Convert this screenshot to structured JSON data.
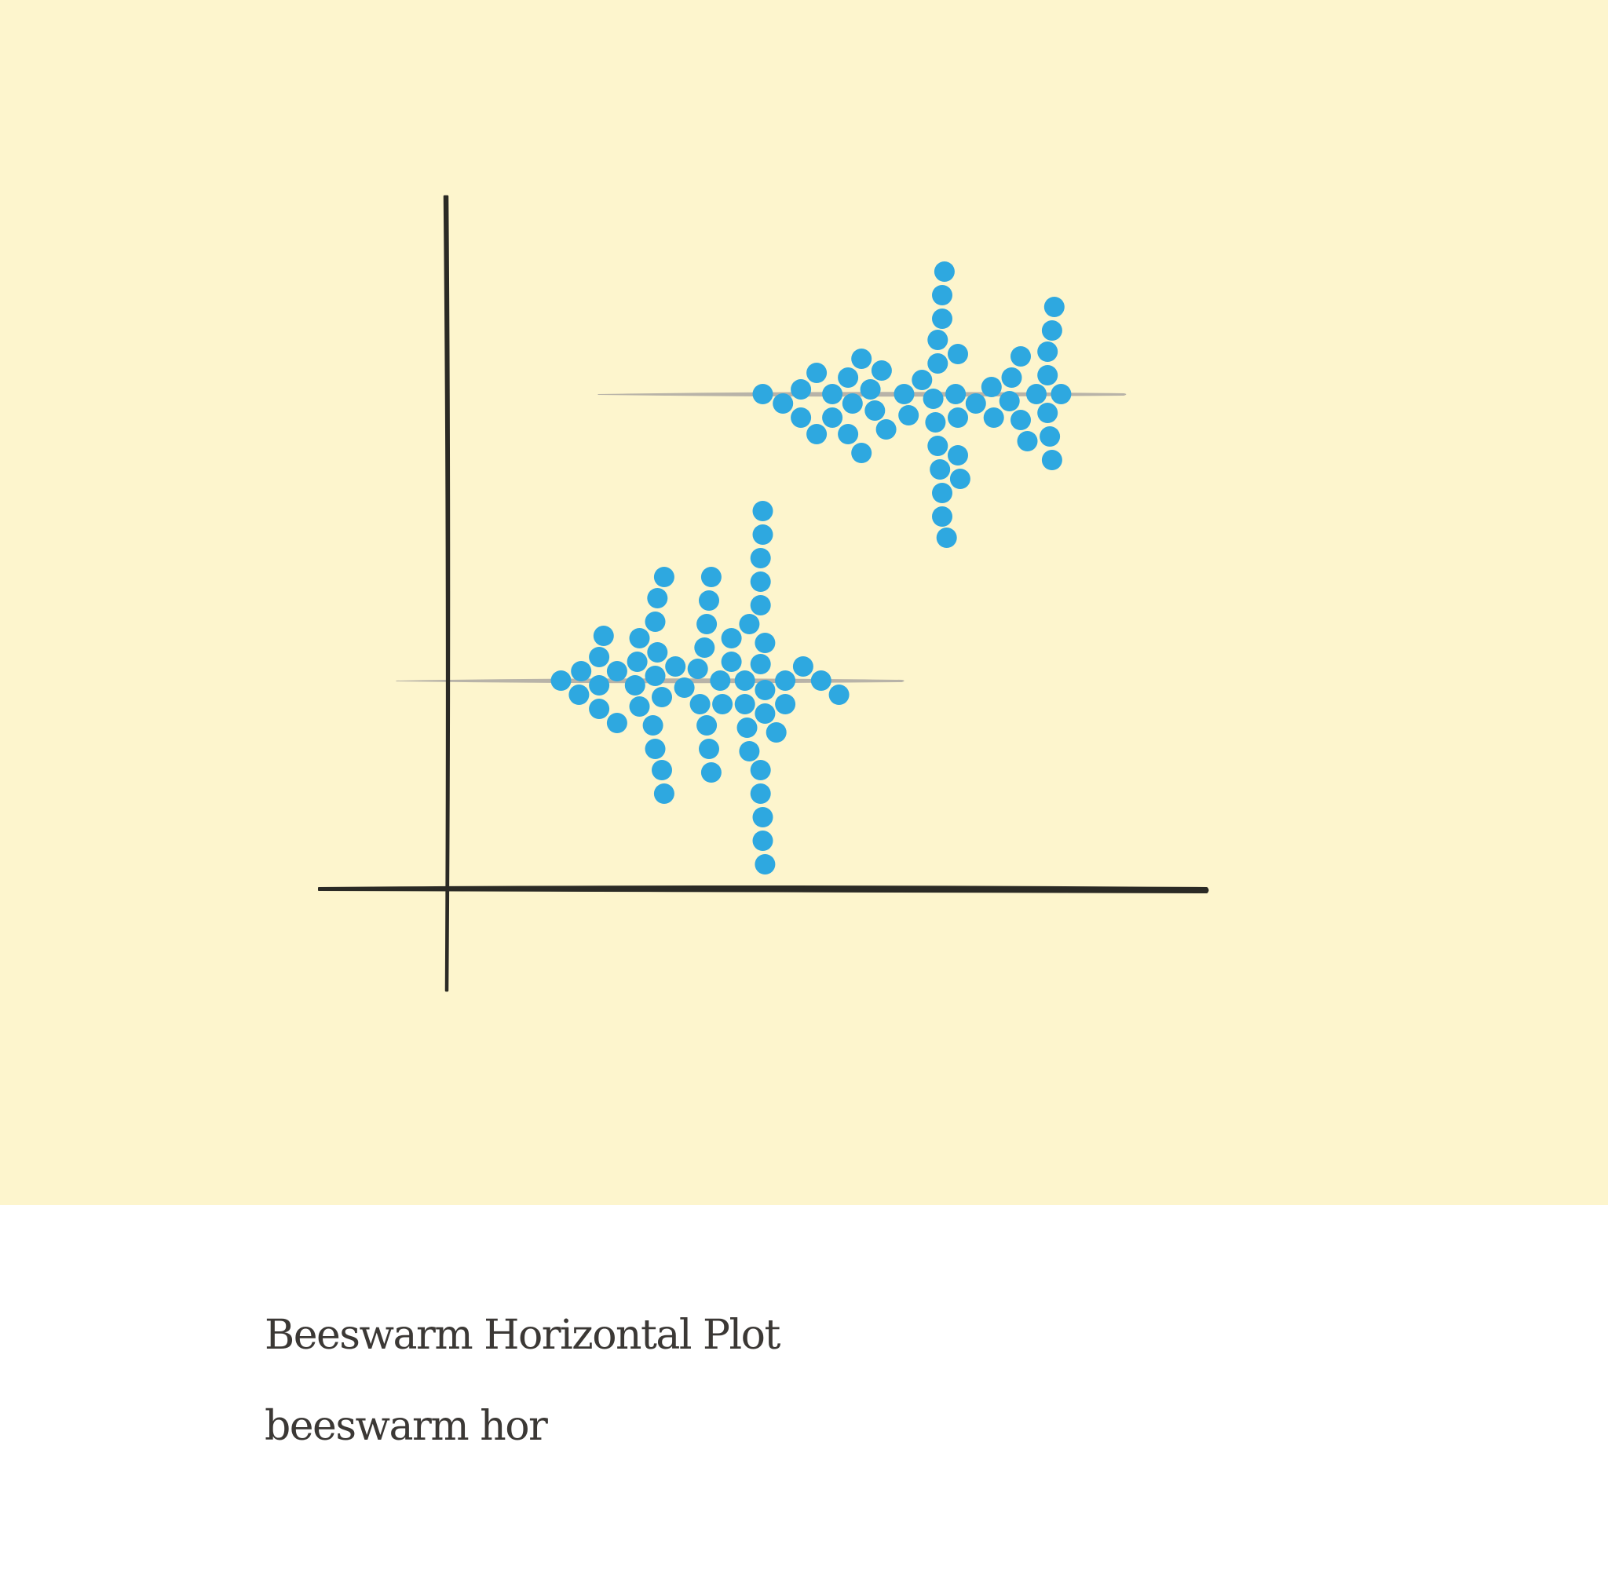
{
  "card": {
    "title": "Beeswarm Horizontal Plot",
    "subtitle": "beeswarm hor"
  },
  "colors": {
    "background": "#fdf5cd",
    "dot": "#2ea8e0",
    "axis": "#2b2a25",
    "baseline": "#b8b3a8",
    "text": "#3b3835"
  },
  "chart_data": {
    "type": "scatter",
    "style": "beeswarm",
    "orientation": "horizontal",
    "title": "",
    "xlabel": "",
    "ylabel": "",
    "xlim": [
      -4,
      30
    ],
    "ylim": [
      0,
      10
    ],
    "grid": false,
    "legend": "none",
    "series": [
      {
        "values": [
          10.2,
          11.1,
          11.9,
          11.9,
          12.6,
          12.6,
          13.3,
          13.3,
          14.0,
          14.0,
          14.2,
          14.6,
          14.6,
          15.0,
          15.2,
          15.5,
          15.7,
          16.5,
          16.7,
          17.3,
          17.8,
          17.9,
          18.0,
          18.0,
          18.0,
          18.1,
          18.2,
          18.2,
          18.2,
          18.2,
          18.3,
          18.4,
          18.8,
          18.9,
          18.9,
          18.9,
          19.0,
          19.7,
          20.4,
          20.5,
          21.2,
          21.3,
          21.7,
          21.7,
          22.0,
          22.4,
          22.9,
          22.9,
          22.9,
          23.0,
          23.1,
          23.1,
          23.2,
          23.5
        ]
      },
      {
        "values": [
          1.2,
          2.0,
          2.1,
          2.9,
          2.9,
          2.9,
          3.1,
          3.7,
          3.7,
          4.5,
          4.6,
          4.7,
          4.7,
          5.3,
          5.4,
          5.4,
          5.4,
          5.5,
          5.5,
          5.7,
          5.7,
          5.8,
          5.8,
          6.3,
          6.7,
          7.3,
          7.4,
          7.6,
          7.7,
          7.7,
          7.8,
          7.8,
          7.9,
          7.9,
          8.3,
          8.4,
          8.8,
          8.8,
          9.4,
          9.4,
          9.5,
          9.6,
          9.6,
          10.1,
          10.1,
          10.1,
          10.1,
          10.1,
          10.1,
          10.2,
          10.2,
          10.2,
          10.2,
          10.3,
          10.3,
          10.3,
          10.3,
          10.8,
          11.2,
          11.2,
          12.0,
          12.8,
          13.6
        ]
      }
    ]
  }
}
